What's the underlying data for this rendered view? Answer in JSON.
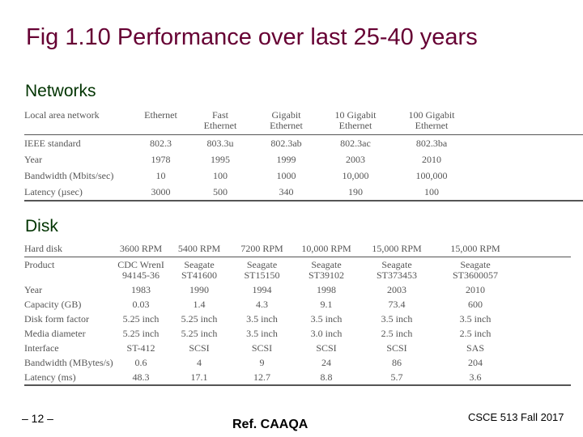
{
  "slide": {
    "title": "Fig 1.10 Performance over last 25-40 years",
    "networks_heading": "Networks",
    "disk_heading": "Disk",
    "footer": {
      "page": "– 12 –",
      "reference": "Ref. CAAQA",
      "course": "CSCE 513 Fall 2017"
    }
  },
  "networks_table": {
    "header": [
      "Local area network",
      "Ethernet",
      "Fast\nEthernet",
      "Gigabit\nEthernet",
      "10 Gigabit\nEthernet",
      "100 Gigabit\nEthernet"
    ],
    "rows": [
      [
        "IEEE standard",
        "802.3",
        "803.3u",
        "802.3ab",
        "802.3ac",
        "802.3ba"
      ],
      [
        "Year",
        "1978",
        "1995",
        "1999",
        "2003",
        "2010"
      ],
      [
        "Bandwidth (Mbits/sec)",
        "10",
        "100",
        "1000",
        "10,000",
        "100,000"
      ],
      [
        "Latency (µsec)",
        "3000",
        "500",
        "340",
        "190",
        "100"
      ]
    ]
  },
  "disk_table": {
    "header": [
      "Hard disk",
      "3600 RPM",
      "5400 RPM",
      "7200 RPM",
      "10,000 RPM",
      "15,000 RPM",
      "15,000 RPM"
    ],
    "rows": [
      [
        "Product",
        "CDC WrenI\n94145-36",
        "Seagate\nST41600",
        "Seagate\nST15150",
        "Seagate\nST39102",
        "Seagate\nST373453",
        "Seagate\nST3600057"
      ],
      [
        "Year",
        "1983",
        "1990",
        "1994",
        "1998",
        "2003",
        "2010"
      ],
      [
        "Capacity (GB)",
        "0.03",
        "1.4",
        "4.3",
        "9.1",
        "73.4",
        "600"
      ],
      [
        "Disk form factor",
        "5.25 inch",
        "5.25 inch",
        "3.5 inch",
        "3.5 inch",
        "3.5 inch",
        "3.5 inch"
      ],
      [
        "Media diameter",
        "5.25 inch",
        "5.25 inch",
        "3.5 inch",
        "3.0 inch",
        "2.5 inch",
        "2.5 inch"
      ],
      [
        "Interface",
        "ST-412",
        "SCSI",
        "SCSI",
        "SCSI",
        "SCSI",
        "SAS"
      ],
      [
        "Bandwidth (MBytes/s)",
        "0.6",
        "4",
        "9",
        "24",
        "86",
        "204"
      ],
      [
        "Latency (ms)",
        "48.3",
        "17.1",
        "12.7",
        "8.8",
        "5.7",
        "3.6"
      ]
    ]
  }
}
